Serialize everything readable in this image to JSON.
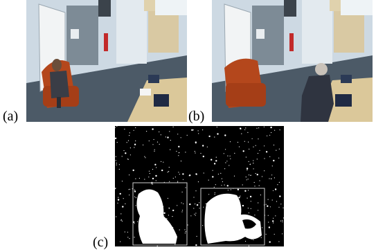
{
  "figure": {
    "panels": [
      {
        "id": "a",
        "label": "(a)",
        "content": "office-scene-person-seated"
      },
      {
        "id": "b",
        "label": "(b)",
        "content": "office-scene-person-standing"
      },
      {
        "id": "c",
        "label": "(c)",
        "content": "motion-mask"
      }
    ]
  },
  "colors": {
    "wall": "#c8d6e0",
    "floor": "#4a5866",
    "chair": "#b4471c",
    "desk": "#d8c69a",
    "mask_bg": "#000000",
    "mask_fg": "#ffffff"
  }
}
